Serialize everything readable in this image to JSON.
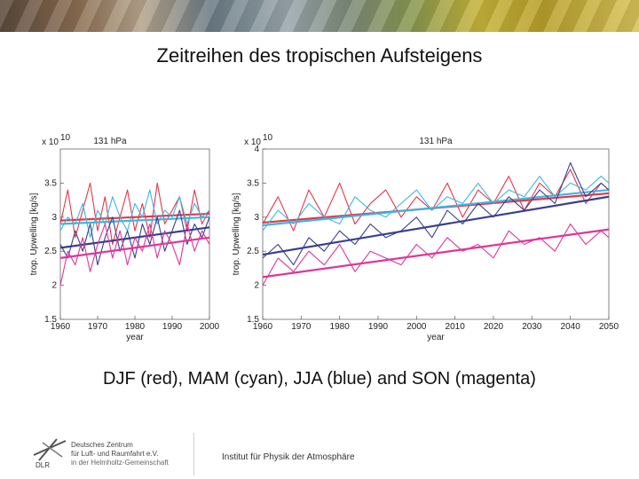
{
  "page_title": "Zeitreihen des tropischen Aufsteigens",
  "caption": "DJF (red), MAM (cyan), JJA (blue) and SON (magenta)",
  "footer": {
    "institute": "Institut für Physik der Atmosphäre",
    "logo_label": "DLR",
    "org_line1": "Deutsches Zentrum",
    "org_line2": "für Luft- und Raumfahrt e.V.",
    "org_line3": "in der Helmholtz-Gemeinschaft"
  },
  "chart_data": [
    {
      "type": "line",
      "title": "131 hPa",
      "xlabel": "year",
      "ylabel": "trop. Upwelling [kg/s]",
      "y_multiplier": "x 10",
      "y_exponent": "10",
      "xlim": [
        1960,
        2000
      ],
      "ylim": [
        1.5,
        4
      ],
      "xticks": [
        1960,
        1970,
        1980,
        1990,
        2000
      ],
      "yticks": [
        1.5,
        2,
        2.5,
        3,
        3.5
      ],
      "series": [
        {
          "name": "DJF",
          "color": "#e8354a",
          "x": [
            1960,
            1962,
            1964,
            1966,
            1968,
            1970,
            1972,
            1974,
            1976,
            1978,
            1980,
            1982,
            1984,
            1986,
            1988,
            1990,
            1992,
            1994,
            1996,
            1998,
            2000
          ],
          "values": [
            2.9,
            3.4,
            2.7,
            3.1,
            3.5,
            2.8,
            3.3,
            2.6,
            3.0,
            3.4,
            2.8,
            3.2,
            2.7,
            3.5,
            2.9,
            3.1,
            3.3,
            2.8,
            3.4,
            2.9,
            3.1
          ],
          "trend": [
            2.95,
            3.05
          ]
        },
        {
          "name": "MAM",
          "color": "#3db6e0",
          "x": [
            1960,
            1962,
            1964,
            1966,
            1968,
            1970,
            1972,
            1974,
            1976,
            1978,
            1980,
            1982,
            1984,
            1986,
            1988,
            1990,
            1992,
            1994,
            1996,
            1998,
            2000
          ],
          "values": [
            2.8,
            3.0,
            2.9,
            3.2,
            2.7,
            3.1,
            2.9,
            3.3,
            3.0,
            2.8,
            3.2,
            3.0,
            3.4,
            2.9,
            3.1,
            3.0,
            3.3,
            2.9,
            3.2,
            3.0,
            3.1
          ],
          "trend": [
            2.9,
            3.0
          ]
        },
        {
          "name": "JJA",
          "color": "#3a3f8f",
          "x": [
            1960,
            1962,
            1964,
            1966,
            1968,
            1970,
            1972,
            1974,
            1976,
            1978,
            1980,
            1982,
            1984,
            1986,
            1988,
            1990,
            1992,
            1994,
            1996,
            1998,
            2000
          ],
          "values": [
            2.6,
            2.4,
            2.8,
            2.5,
            2.9,
            2.3,
            2.7,
            3.0,
            2.5,
            2.8,
            2.4,
            2.9,
            2.6,
            3.0,
            2.5,
            2.8,
            3.1,
            2.6,
            2.9,
            2.7,
            3.0
          ],
          "trend": [
            2.55,
            2.85
          ]
        },
        {
          "name": "SON",
          "color": "#e0359a",
          "x": [
            1960,
            1962,
            1964,
            1966,
            1968,
            1970,
            1972,
            1974,
            1976,
            1978,
            1980,
            1982,
            1984,
            1986,
            1988,
            1990,
            1992,
            1994,
            1996,
            1998,
            2000
          ],
          "values": [
            2.0,
            2.5,
            2.3,
            2.7,
            2.2,
            2.6,
            2.9,
            2.4,
            2.8,
            2.3,
            2.7,
            2.5,
            2.9,
            2.4,
            2.8,
            2.6,
            2.3,
            2.9,
            2.5,
            2.8,
            2.6
          ],
          "trend": [
            2.4,
            2.7
          ]
        }
      ]
    },
    {
      "type": "line",
      "title": "131 hPa",
      "xlabel": "year",
      "ylabel": "trop. Upwelling [kg/s]",
      "y_multiplier": "x 10",
      "y_exponent": "10",
      "xlim": [
        1960,
        2050
      ],
      "ylim": [
        1.5,
        4
      ],
      "xticks": [
        1960,
        1970,
        1980,
        1990,
        2000,
        2010,
        2020,
        2030,
        2040,
        2050
      ],
      "yticks": [
        1.5,
        2,
        2.5,
        3,
        3.5,
        4
      ],
      "series": [
        {
          "name": "DJF",
          "color": "#e8354a",
          "x": [
            1960,
            1964,
            1968,
            1972,
            1976,
            1980,
            1984,
            1988,
            1992,
            1996,
            2000,
            2004,
            2008,
            2012,
            2016,
            2020,
            2024,
            2028,
            2032,
            2036,
            2040,
            2044,
            2048,
            2050
          ],
          "values": [
            2.9,
            3.3,
            2.8,
            3.4,
            3.0,
            3.5,
            2.9,
            3.2,
            3.4,
            3.0,
            3.3,
            3.1,
            3.5,
            3.0,
            3.4,
            3.2,
            3.6,
            3.1,
            3.5,
            3.3,
            3.7,
            3.2,
            3.5,
            3.4
          ],
          "trend": [
            2.92,
            3.35
          ]
        },
        {
          "name": "MAM",
          "color": "#3db6e0",
          "x": [
            1960,
            1964,
            1968,
            1972,
            1976,
            1980,
            1984,
            1988,
            1992,
            1996,
            2000,
            2004,
            2008,
            2012,
            2016,
            2020,
            2024,
            2028,
            2032,
            2036,
            2040,
            2044,
            2048,
            2050
          ],
          "values": [
            2.8,
            3.1,
            2.9,
            3.2,
            3.0,
            2.9,
            3.3,
            3.1,
            3.0,
            3.2,
            3.4,
            3.1,
            3.3,
            3.2,
            3.5,
            3.2,
            3.4,
            3.3,
            3.6,
            3.3,
            3.5,
            3.4,
            3.6,
            3.5
          ],
          "trend": [
            2.88,
            3.4
          ]
        },
        {
          "name": "JJA",
          "color": "#3a3f8f",
          "x": [
            1960,
            1964,
            1968,
            1972,
            1976,
            1980,
            1984,
            1988,
            1992,
            1996,
            2000,
            2004,
            2008,
            2012,
            2016,
            2020,
            2024,
            2028,
            2032,
            2036,
            2040,
            2044,
            2048,
            2050
          ],
          "values": [
            2.4,
            2.6,
            2.3,
            2.7,
            2.5,
            2.8,
            2.6,
            2.9,
            2.7,
            2.8,
            3.0,
            2.7,
            3.1,
            2.9,
            3.2,
            3.0,
            3.3,
            3.1,
            3.4,
            3.2,
            3.8,
            3.3,
            3.5,
            3.4
          ],
          "trend": [
            2.45,
            3.3
          ]
        },
        {
          "name": "SON",
          "color": "#e0359a",
          "x": [
            1960,
            1964,
            1968,
            1972,
            1976,
            1980,
            1984,
            1988,
            1992,
            1996,
            2000,
            2004,
            2008,
            2012,
            2016,
            2020,
            2024,
            2028,
            2032,
            2036,
            2040,
            2044,
            2048,
            2050
          ],
          "values": [
            2.0,
            2.4,
            2.2,
            2.5,
            2.3,
            2.6,
            2.2,
            2.5,
            2.4,
            2.3,
            2.6,
            2.4,
            2.7,
            2.5,
            2.6,
            2.4,
            2.8,
            2.6,
            2.7,
            2.5,
            2.9,
            2.6,
            2.8,
            2.7
          ],
          "trend": [
            2.12,
            2.82
          ]
        }
      ]
    }
  ]
}
